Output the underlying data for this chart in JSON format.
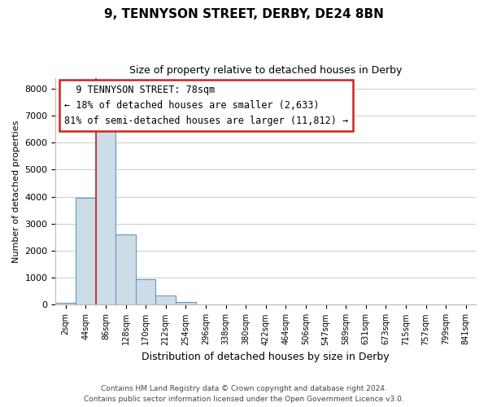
{
  "title": "9, TENNYSON STREET, DERBY, DE24 8BN",
  "subtitle": "Size of property relative to detached houses in Derby",
  "bar_labels": [
    "2sqm",
    "44sqm",
    "86sqm",
    "128sqm",
    "170sqm",
    "212sqm",
    "254sqm",
    "296sqm",
    "338sqm",
    "380sqm",
    "422sqm",
    "464sqm",
    "506sqm",
    "547sqm",
    "589sqm",
    "631sqm",
    "673sqm",
    "715sqm",
    "757sqm",
    "799sqm",
    "841sqm"
  ],
  "bar_values": [
    60,
    3950,
    6600,
    2600,
    960,
    330,
    110,
    0,
    0,
    0,
    0,
    0,
    0,
    0,
    0,
    0,
    0,
    0,
    0,
    0,
    0
  ],
  "bar_color": "#ccdde8",
  "bar_edge_color": "#6699bb",
  "property_line_color": "#cc2222",
  "annotation_title": "9 TENNYSON STREET: 78sqm",
  "annotation_line1": "← 18% of detached houses are smaller (2,633)",
  "annotation_line2": "81% of semi-detached houses are larger (11,812) →",
  "annotation_box_color": "white",
  "annotation_box_edge": "#cc2222",
  "xlabel": "Distribution of detached houses by size in Derby",
  "ylabel": "Number of detached properties",
  "ylim": [
    0,
    8400
  ],
  "yticks": [
    0,
    1000,
    2000,
    3000,
    4000,
    5000,
    6000,
    7000,
    8000
  ],
  "footer_line1": "Contains HM Land Registry data © Crown copyright and database right 2024.",
  "footer_line2": "Contains public sector information licensed under the Open Government Licence v3.0.",
  "bg_color": "#ffffff",
  "plot_bg_color": "#ffffff",
  "grid_color": "#cccccc"
}
